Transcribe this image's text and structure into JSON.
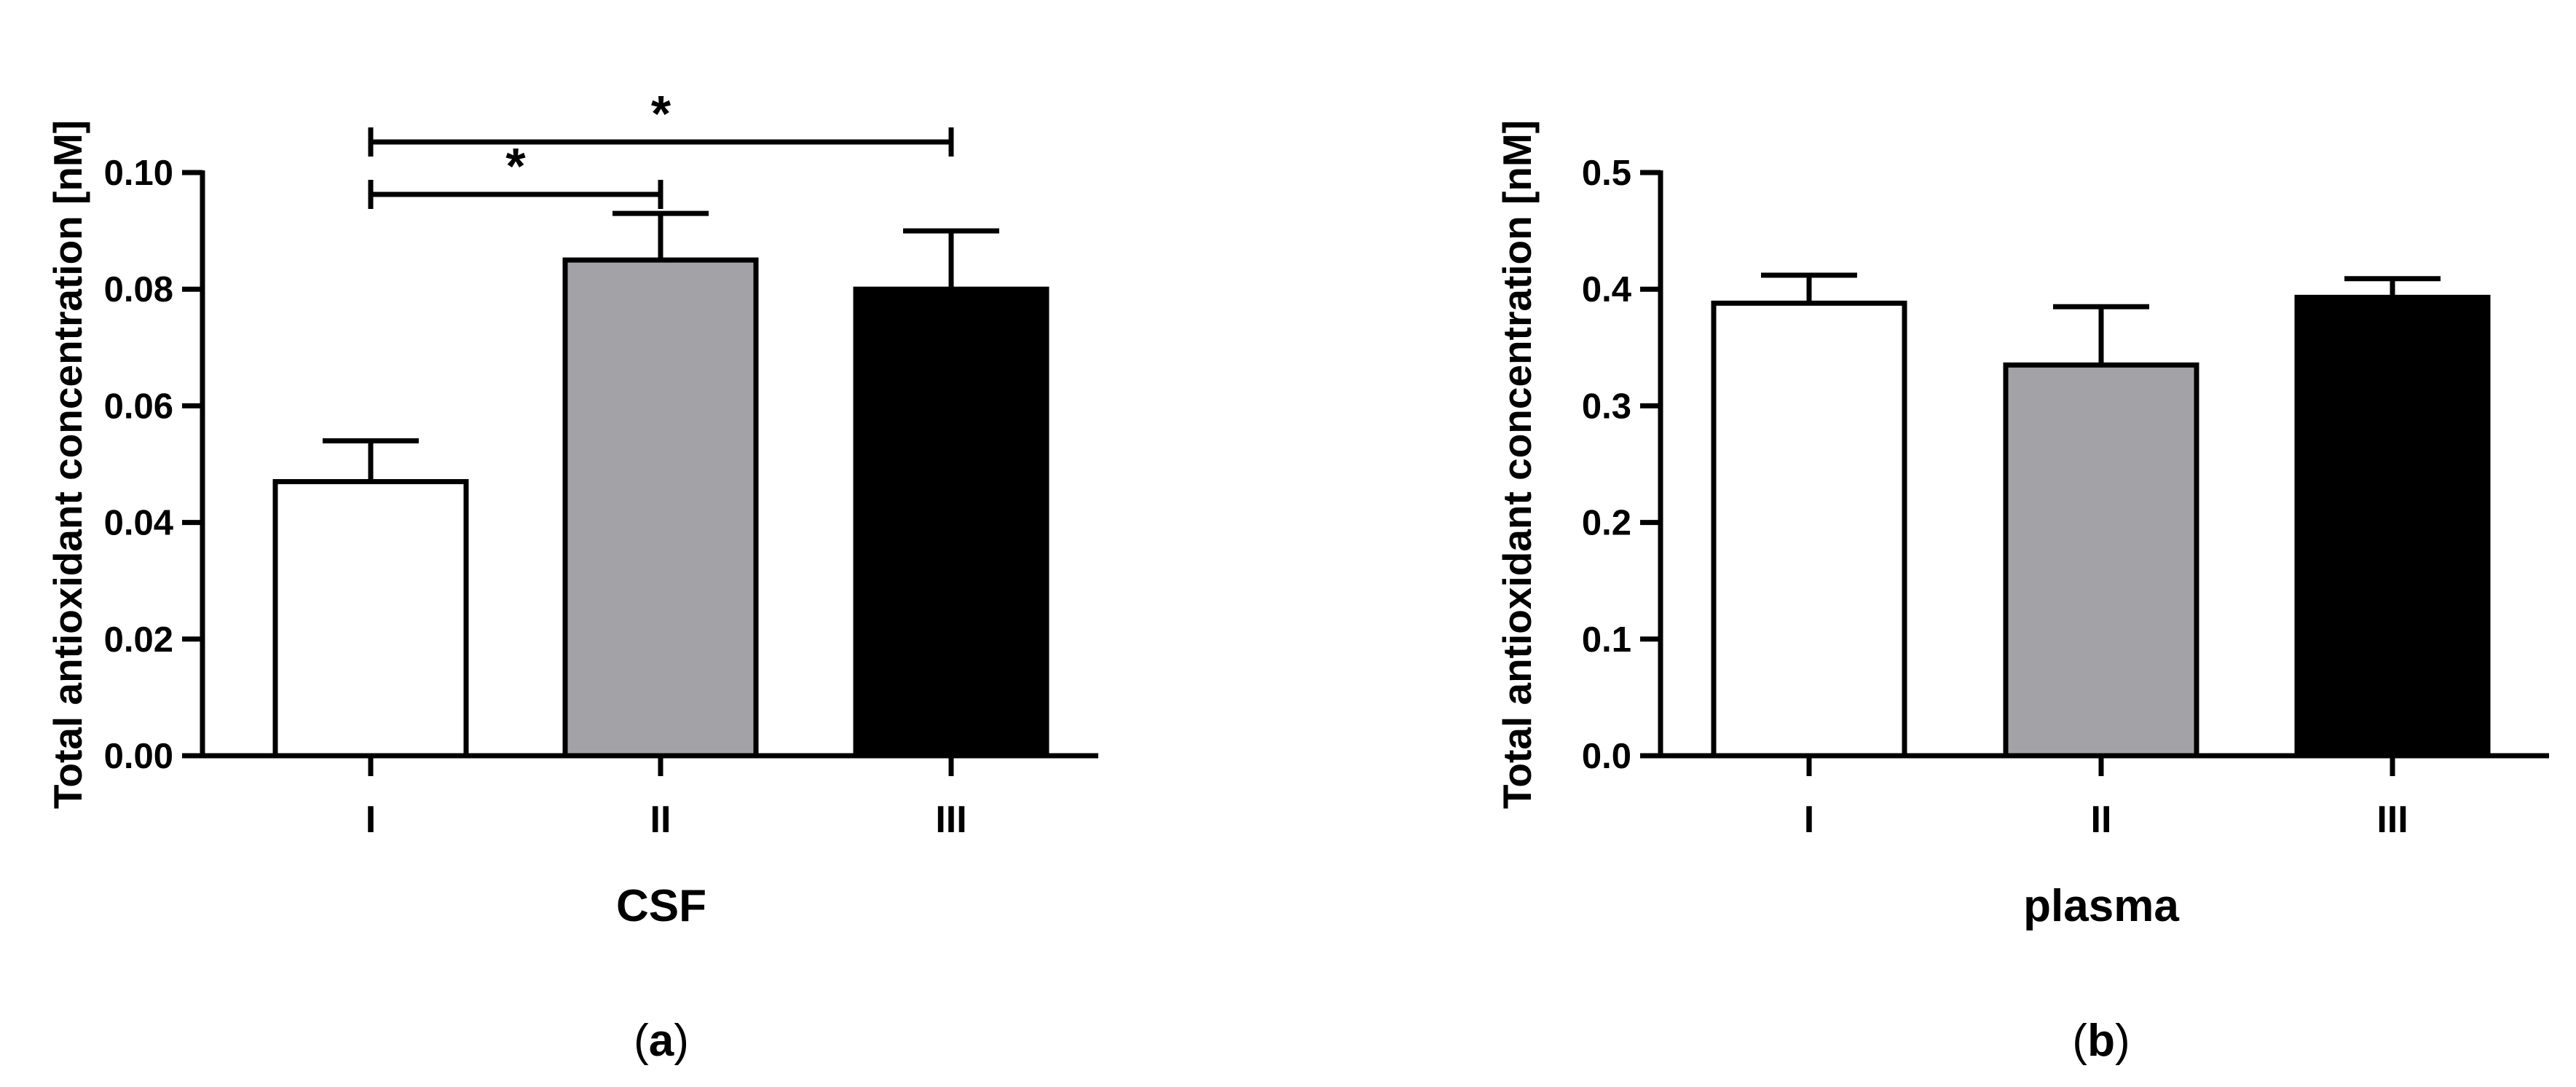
{
  "chart_data": [
    {
      "type": "bar",
      "panel_label": "a",
      "categories": [
        "I",
        "II",
        "III"
      ],
      "values": [
        0.047,
        0.085,
        0.08
      ],
      "errors": [
        0.007,
        0.008,
        0.01
      ],
      "bar_colors": [
        "#ffffff",
        "#a3a2a7",
        "#000000"
      ],
      "ylabel": "Total antioxidant concentration [nM]",
      "xlabel": "CSF",
      "ylim": [
        0,
        0.1
      ],
      "yticks": [
        "0.00",
        "0.02",
        "0.04",
        "0.06",
        "0.08",
        "0.10"
      ],
      "ytick_values": [
        0,
        0.02,
        0.04,
        0.06,
        0.08,
        0.1
      ],
      "significance": [
        {
          "from": "I",
          "to": "II",
          "label": "*"
        },
        {
          "from": "I",
          "to": "III",
          "label": "*"
        }
      ]
    },
    {
      "type": "bar",
      "panel_label": "b",
      "categories": [
        "I",
        "II",
        "III"
      ],
      "values": [
        0.388,
        0.335,
        0.393
      ],
      "errors": [
        0.024,
        0.05,
        0.016
      ],
      "bar_colors": [
        "#ffffff",
        "#a3a2a7",
        "#000000"
      ],
      "ylabel": "Total antioxidant concentration [nM]",
      "xlabel": "plasma",
      "ylim": [
        0,
        0.5
      ],
      "yticks": [
        "0.0",
        "0.1",
        "0.2",
        "0.3",
        "0.4",
        "0.5"
      ],
      "ytick_values": [
        0,
        0.1,
        0.2,
        0.3,
        0.4,
        0.5
      ],
      "significance": []
    }
  ]
}
